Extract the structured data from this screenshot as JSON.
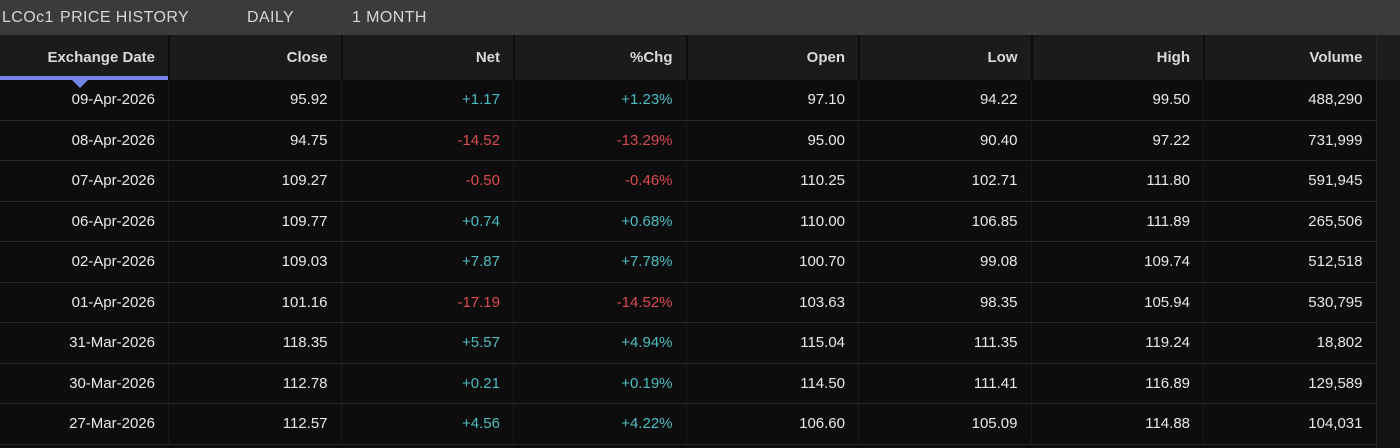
{
  "titlebar": {
    "symbol": "LCOc1",
    "title": "PRICE HISTORY",
    "frequency": "DAILY",
    "range": "1 MONTH"
  },
  "table": {
    "columns": [
      "Exchange Date",
      "Close",
      "Net",
      "%Chg",
      "Open",
      "Low",
      "High",
      "Volume"
    ],
    "sorted_column": "Exchange Date",
    "sort_direction": "descending",
    "rows": [
      {
        "date": "09-Apr-2026",
        "close": "95.92",
        "net": "+1.17",
        "pct": "+1.23%",
        "open": "97.10",
        "low": "94.22",
        "high": "99.50",
        "volume": "488,290",
        "trend": "pos"
      },
      {
        "date": "08-Apr-2026",
        "close": "94.75",
        "net": "-14.52",
        "pct": "-13.29%",
        "open": "95.00",
        "low": "90.40",
        "high": "97.22",
        "volume": "731,999",
        "trend": "neg"
      },
      {
        "date": "07-Apr-2026",
        "close": "109.27",
        "net": "-0.50",
        "pct": "-0.46%",
        "open": "110.25",
        "low": "102.71",
        "high": "111.80",
        "volume": "591,945",
        "trend": "neg"
      },
      {
        "date": "06-Apr-2026",
        "close": "109.77",
        "net": "+0.74",
        "pct": "+0.68%",
        "open": "110.00",
        "low": "106.85",
        "high": "111.89",
        "volume": "265,506",
        "trend": "pos"
      },
      {
        "date": "02-Apr-2026",
        "close": "109.03",
        "net": "+7.87",
        "pct": "+7.78%",
        "open": "100.70",
        "low": "99.08",
        "high": "109.74",
        "volume": "512,518",
        "trend": "pos"
      },
      {
        "date": "01-Apr-2026",
        "close": "101.16",
        "net": "-17.19",
        "pct": "-14.52%",
        "open": "103.63",
        "low": "98.35",
        "high": "105.94",
        "volume": "530,795",
        "trend": "neg"
      },
      {
        "date": "31-Mar-2026",
        "close": "118.35",
        "net": "+5.57",
        "pct": "+4.94%",
        "open": "115.04",
        "low": "111.35",
        "high": "119.24",
        "volume": "18,802",
        "trend": "pos"
      },
      {
        "date": "30-Mar-2026",
        "close": "112.78",
        "net": "+0.21",
        "pct": "+0.19%",
        "open": "114.50",
        "low": "111.41",
        "high": "116.89",
        "volume": "129,589",
        "trend": "pos"
      },
      {
        "date": "27-Mar-2026",
        "close": "112.57",
        "net": "+4.56",
        "pct": "+4.22%",
        "open": "106.60",
        "low": "105.09",
        "high": "114.88",
        "volume": "104,031",
        "trend": "pos"
      }
    ]
  },
  "colors": {
    "positive": "#4cbcc1",
    "negative": "#da4b50",
    "accent_sort": "#7584e6",
    "titlebar_bg": "#3b3b3b",
    "header_bg": "#1b1b1b",
    "body_bg": "#0d0d0d"
  }
}
